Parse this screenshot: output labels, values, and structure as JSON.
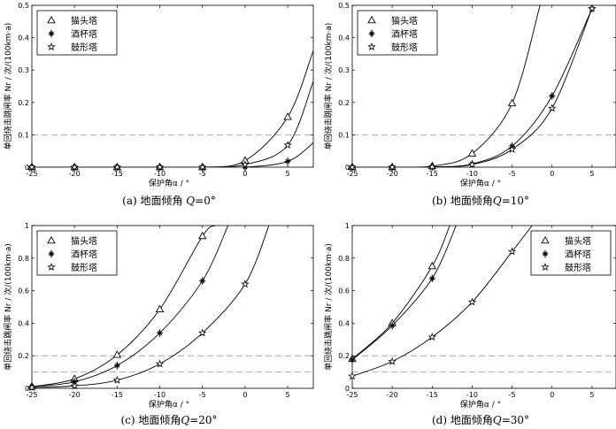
{
  "chart_data": [
    {
      "type": "line",
      "caption": {
        "prefix": "(a) 地面倾角 ",
        "var": "Q",
        "suffix": "=0°"
      },
      "xlabel": "保护角α / °",
      "ylabel": "单回绕击跳闸率  Nr / 次/(100km·a)",
      "xlim": [
        -25,
        8
      ],
      "ylim": [
        0,
        0.5
      ],
      "xticks": [
        -25,
        -20,
        -15,
        -10,
        -5,
        0,
        5
      ],
      "yticks": [
        0,
        0.1,
        0.2,
        0.3,
        0.4,
        0.5
      ],
      "xtick_labels": [
        "-25",
        "-20",
        "-15",
        "-10",
        "-5",
        "0",
        "5"
      ],
      "ytick_labels": [
        "0",
        "0.1",
        "0.2",
        "0.3",
        "0.4",
        "0.5"
      ],
      "threshold": 0.1,
      "series": [
        {
          "name": "猫头塔",
          "marker": "triangle",
          "x": [
            -25,
            -20,
            -15,
            -10,
            -5,
            0,
            5,
            8
          ],
          "y": [
            0,
            0,
            0,
            0,
            0,
            0.02,
            0.155,
            0.36
          ],
          "markers": 7
        },
        {
          "name": "酒杯塔",
          "marker": "plus-star",
          "x": [
            -25,
            -20,
            -15,
            -10,
            -5,
            0,
            5,
            8
          ],
          "y": [
            0,
            0,
            0,
            0,
            0,
            0,
            0.018,
            0.075
          ],
          "markers": 7
        },
        {
          "name": "鼓形塔",
          "marker": "star",
          "x": [
            -25,
            -20,
            -15,
            -10,
            -5,
            0,
            5,
            8
          ],
          "y": [
            0,
            0,
            0,
            0,
            0,
            0.008,
            0.068,
            0.265
          ],
          "markers": 7
        }
      ],
      "legend": "top-left"
    },
    {
      "type": "line",
      "caption": {
        "prefix": "(b) 地面倾角",
        "var": "Q",
        "suffix": "=10°"
      },
      "xlabel": "保护角α / °",
      "ylabel": "单回绕击跳闸率  Nr / 次/(100km·a)",
      "xlim": [
        -25,
        8
      ],
      "ylim": [
        0,
        0.5
      ],
      "xticks": [
        -25,
        -20,
        -15,
        -10,
        -5,
        0,
        5
      ],
      "yticks": [
        0,
        0.1,
        0.2,
        0.3,
        0.4,
        0.5
      ],
      "xtick_labels": [
        "-25",
        "-20",
        "-15",
        "-10",
        "-5",
        "0",
        "5"
      ],
      "ytick_labels": [
        "0",
        "0.1",
        "0.2",
        "0.3",
        "0.4",
        "0.5"
      ],
      "threshold": 0.1,
      "series": [
        {
          "name": "猫头塔",
          "marker": "triangle",
          "x": [
            -25,
            -20,
            -15,
            -10,
            -5,
            -1.5
          ],
          "y": [
            0,
            0,
            0.003,
            0.042,
            0.197,
            0.5
          ],
          "markers": 5
        },
        {
          "name": "酒杯塔",
          "marker": "plus-star",
          "x": [
            -25,
            -20,
            -15,
            -10,
            -5,
            0,
            5
          ],
          "y": [
            0,
            0,
            0.001,
            0.01,
            0.065,
            0.22,
            0.49
          ],
          "markers": 7
        },
        {
          "name": "鼓形塔",
          "marker": "star",
          "x": [
            -25,
            -20,
            -15,
            -10,
            -5,
            0,
            5
          ],
          "y": [
            0,
            0,
            0.001,
            0.008,
            0.055,
            0.182,
            0.49
          ],
          "markers": 7
        }
      ],
      "legend": "top-left"
    },
    {
      "type": "line",
      "caption": {
        "prefix": "(c) 地面倾角",
        "var": "Q",
        "suffix": "=20°"
      },
      "xlabel": "保护角α / °",
      "ylabel": "单回绕击跳闸率  Nr / 次/(100km·a)",
      "xlim": [
        -25,
        8
      ],
      "ylim": [
        0,
        1
      ],
      "xticks": [
        -25,
        -20,
        -15,
        -10,
        -5,
        0,
        5
      ],
      "yticks": [
        0,
        0.2,
        0.4,
        0.6,
        0.8,
        1
      ],
      "xtick_labels": [
        "-25",
        "-20",
        "-15",
        "-10",
        "-5",
        "0",
        "5"
      ],
      "ytick_labels": [
        "0",
        "0.2",
        "0.4",
        "0.6",
        "0.8",
        "1"
      ],
      "thresholds": [
        0.1,
        0.2
      ],
      "series": [
        {
          "name": "猫头塔",
          "marker": "triangle",
          "x": [
            -25,
            -20,
            -15,
            -10,
            -5,
            -3.5
          ],
          "y": [
            0.01,
            0.058,
            0.205,
            0.485,
            0.935,
            1.0
          ],
          "markers": 5
        },
        {
          "name": "酒杯塔",
          "marker": "plus-star",
          "x": [
            -25,
            -20,
            -15,
            -10,
            -5,
            -2
          ],
          "y": [
            0.01,
            0.04,
            0.14,
            0.34,
            0.66,
            1.0
          ],
          "markers": 5
        },
        {
          "name": "鼓形塔",
          "marker": "star",
          "x": [
            -25,
            -20,
            -15,
            -10,
            -5,
            0,
            2.8
          ],
          "y": [
            0.005,
            0.015,
            0.05,
            0.15,
            0.34,
            0.64,
            1.0
          ],
          "markers": 6
        }
      ],
      "legend": "top-left"
    },
    {
      "type": "line",
      "caption": {
        "prefix": "(d) 地面倾角",
        "var": "Q",
        "suffix": "=30°"
      },
      "xlabel": "保护角α / °",
      "ylabel": "单回绕击跳闸率  Nr / 次/(100km·a)",
      "xlim": [
        -25,
        8
      ],
      "ylim": [
        0,
        1
      ],
      "xticks": [
        -25,
        -20,
        -15,
        -10,
        -5,
        0,
        5
      ],
      "yticks": [
        0,
        0.2,
        0.4,
        0.6,
        0.8,
        1
      ],
      "xtick_labels": [
        "-25",
        "-20",
        "-15",
        "-10",
        "-5",
        "0",
        "5"
      ],
      "ytick_labels": [
        "0",
        "0.2",
        "0.4",
        "0.6",
        "0.8",
        "1"
      ],
      "thresholds": [
        0.1,
        0.2
      ],
      "series": [
        {
          "name": "猫头塔",
          "marker": "triangle",
          "x": [
            -25,
            -20,
            -15,
            -12.8
          ],
          "y": [
            0.18,
            0.4,
            0.75,
            1.0
          ],
          "markers": 3
        },
        {
          "name": "酒杯塔",
          "marker": "plus-star",
          "x": [
            -25,
            -20,
            -15,
            -12
          ],
          "y": [
            0.175,
            0.385,
            0.675,
            1.0
          ],
          "markers": 3
        },
        {
          "name": "鼓形塔",
          "marker": "star",
          "x": [
            -25,
            -20,
            -15,
            -10,
            -5,
            -2.5
          ],
          "y": [
            0.075,
            0.165,
            0.315,
            0.53,
            0.84,
            1.0
          ],
          "markers": 5
        }
      ],
      "legend": "top-right"
    }
  ]
}
